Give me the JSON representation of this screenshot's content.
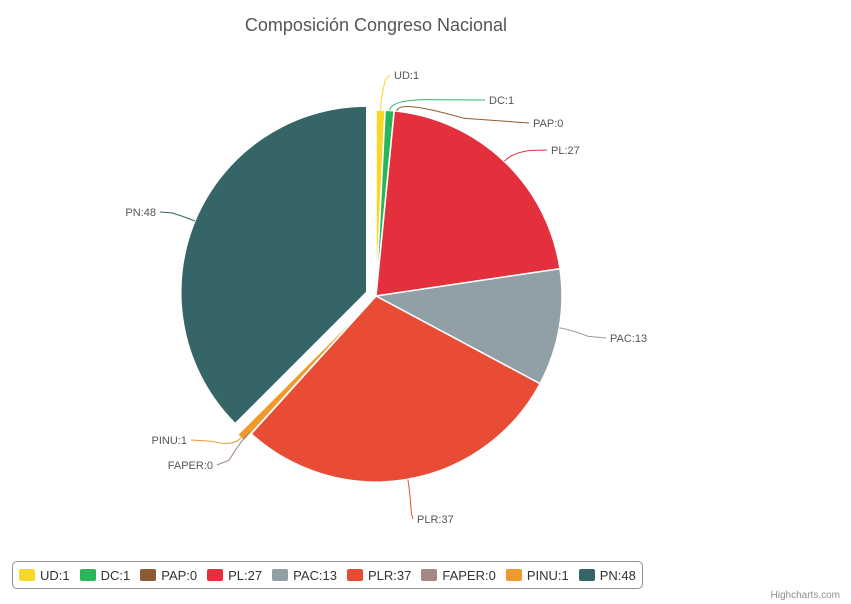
{
  "chart_data": {
    "type": "pie",
    "title": "Composición Congreso Nacional",
    "credit": "Highcharts.com",
    "legend_position": "bottom",
    "slices": [
      {
        "name": "UD",
        "value": 1,
        "label": "UD:1",
        "color": "#f7d82a",
        "sliced": false
      },
      {
        "name": "DC",
        "value": 1,
        "label": "DC:1",
        "color": "#2bb559",
        "sliced": false
      },
      {
        "name": "PAP",
        "value": 0,
        "label": "PAP:0",
        "color": "#8d5b33",
        "sliced": false
      },
      {
        "name": "PL",
        "value": 27,
        "label": "PL:27",
        "color": "#e3303c",
        "sliced": false
      },
      {
        "name": "PAC",
        "value": 13,
        "label": "PAC:13",
        "color": "#919fa7",
        "sliced": false
      },
      {
        "name": "PLR",
        "value": 37,
        "label": "PLR:37",
        "color": "#e94c35",
        "sliced": false
      },
      {
        "name": "FAPER",
        "value": 0,
        "label": "FAPER:0",
        "color": "#a58784",
        "sliced": false
      },
      {
        "name": "PINU",
        "value": 1,
        "label": "PINU:1",
        "color": "#ef9a2c",
        "sliced": true
      },
      {
        "name": "PN",
        "value": 48,
        "label": "PN:48",
        "color": "#356566",
        "sliced": true
      }
    ]
  }
}
